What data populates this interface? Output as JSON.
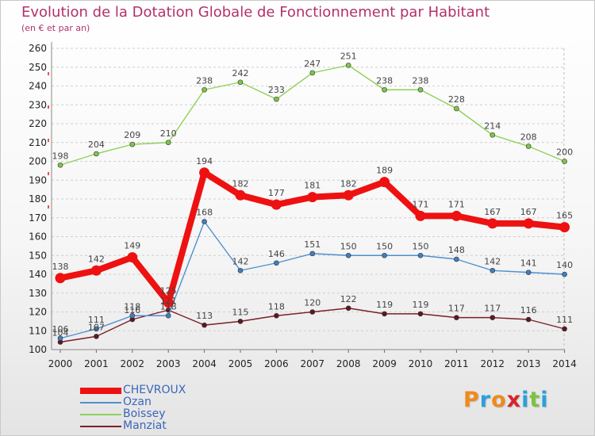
{
  "header": {
    "title": "Evolution de la Dotation Globale de Fonctionnement par Habitant",
    "subtitle": "(en € et par an)"
  },
  "logo": {
    "letters": [
      "P",
      "r",
      "o",
      "x",
      "i",
      "t",
      "i"
    ],
    "colors": [
      "#f08a1c",
      "#2aa0dd",
      "#f08a1c",
      "#d8232a",
      "#2aa0dd",
      "#7cc242",
      "#2aa0dd"
    ]
  },
  "chart_data": {
    "type": "line",
    "title": "Evolution de la Dotation Globale de Fonctionnement par Habitant",
    "subtitle": "(en € et par an)",
    "x": [
      "2000",
      "2001",
      "2002",
      "2003",
      "2004",
      "2005",
      "2006",
      "2007",
      "2008",
      "2009",
      "2010",
      "2011",
      "2012",
      "2013",
      "2014"
    ],
    "ylim": [
      100,
      260
    ],
    "yticks": [
      100,
      110,
      120,
      130,
      140,
      150,
      160,
      170,
      180,
      190,
      200,
      210,
      220,
      230,
      240,
      250,
      260
    ],
    "grid": "horizontal dashed",
    "legend_position": "bottom-left",
    "series": [
      {
        "name": "Boissey",
        "color": "#8fd15a",
        "marker": "#7ec64a",
        "values": [
          198,
          204,
          209,
          210,
          238,
          242,
          233,
          247,
          251,
          238,
          238,
          228,
          214,
          208,
          200
        ]
      },
      {
        "name": "Manziat",
        "color": "#7a1f28",
        "marker": "#5e1820",
        "values": [
          104,
          107,
          116,
          121,
          113,
          115,
          118,
          120,
          122,
          119,
          119,
          117,
          117,
          116,
          111
        ]
      },
      {
        "name": "Ozan",
        "color": "#4f8fcf",
        "marker": "#3f7fc0",
        "values": [
          106,
          111,
          118,
          118,
          168,
          142,
          146,
          151,
          150,
          150,
          150,
          148,
          142,
          141,
          140
        ]
      },
      {
        "name": "CHEVROUX",
        "color": "#ee1111",
        "marker": "#ee1111",
        "values": [
          138,
          142,
          149,
          125,
          194,
          182,
          177,
          181,
          182,
          189,
          171,
          171,
          167,
          167,
          165
        ]
      }
    ],
    "legend_order": [
      "CHEVROUX",
      "Ozan",
      "Boissey",
      "Manziat"
    ]
  }
}
